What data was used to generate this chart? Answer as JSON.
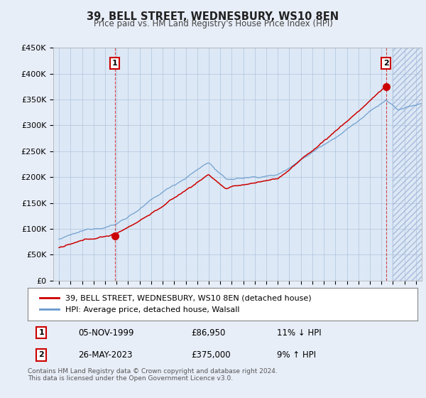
{
  "title": "39, BELL STREET, WEDNESBURY, WS10 8EN",
  "subtitle": "Price paid vs. HM Land Registry's House Price Index (HPI)",
  "hpi_color": "#6699cc",
  "price_color": "#cc0000",
  "background_color": "#e8eef8",
  "plot_bg_color": "#dce8f5",
  "ylim": [
    0,
    450000
  ],
  "yticks": [
    0,
    50000,
    100000,
    150000,
    200000,
    250000,
    300000,
    350000,
    400000,
    450000
  ],
  "ytick_labels": [
    "£0",
    "£50K",
    "£100K",
    "£150K",
    "£200K",
    "£250K",
    "£300K",
    "£350K",
    "£400K",
    "£450K"
  ],
  "sale1_date": "05-NOV-1999",
  "sale1_price": 86950,
  "sale1_year": 1999.84,
  "sale1_hpi_diff": "11% ↓ HPI",
  "sale1_label": "1",
  "sale2_date": "26-MAY-2023",
  "sale2_price": 375000,
  "sale2_year": 2023.39,
  "sale2_hpi_diff": "9% ↑ HPI",
  "sale2_label": "2",
  "legend_label1": "39, BELL STREET, WEDNESBURY, WS10 8EN (detached house)",
  "legend_label2": "HPI: Average price, detached house, Walsall",
  "footnote": "Contains HM Land Registry data © Crown copyright and database right 2024.\nThis data is licensed under the Open Government Licence v3.0.",
  "x_start_year": 1995,
  "x_end_year": 2026
}
